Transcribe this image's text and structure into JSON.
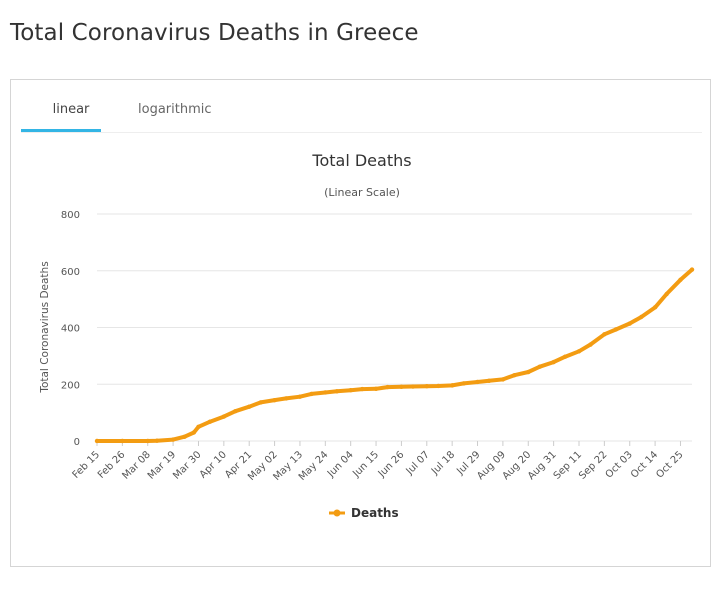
{
  "page": {
    "title": "Total Coronavirus Deaths in Greece"
  },
  "tabs": [
    {
      "label": "linear",
      "active": true
    },
    {
      "label": "logarithmic",
      "active": false
    }
  ],
  "colors": {
    "series": "#f39c12",
    "tab_active": "#33b5e5",
    "grid": "#e6e6e6"
  },
  "chart_data": {
    "type": "line",
    "title": "Total Deaths",
    "subtitle": "(Linear Scale)",
    "ylabel": "Total Coronavirus Deaths",
    "xlabel": "",
    "ylim": [
      0,
      800
    ],
    "yticks": [
      0,
      200,
      400,
      600,
      800
    ],
    "grid": true,
    "legend_position": "bottom-center",
    "x_tick_labels": [
      "Feb 15",
      "Feb 26",
      "Mar 08",
      "Mar 19",
      "Mar 30",
      "Apr 10",
      "Apr 21",
      "May 02",
      "May 13",
      "May 24",
      "Jun 04",
      "Jun 15",
      "Jun 26",
      "Jul 07",
      "Jul 18",
      "Jul 29",
      "Aug 09",
      "Aug 20",
      "Aug 31",
      "Sep 11",
      "Sep 22",
      "Oct 03",
      "Oct 14",
      "Oct 25"
    ],
    "x": [
      "Feb 15",
      "Feb 26",
      "Mar 08",
      "Mar 12",
      "Mar 19",
      "Mar 24",
      "Mar 28",
      "Mar 30",
      "Apr 04",
      "Apr 10",
      "Apr 15",
      "Apr 21",
      "Apr 26",
      "May 02",
      "May 07",
      "May 13",
      "May 18",
      "May 24",
      "May 29",
      "Jun 04",
      "Jun 09",
      "Jun 15",
      "Jun 20",
      "Jun 26",
      "Jul 01",
      "Jul 07",
      "Jul 12",
      "Jul 18",
      "Jul 23",
      "Jul 29",
      "Aug 03",
      "Aug 09",
      "Aug 14",
      "Aug 20",
      "Aug 25",
      "Aug 31",
      "Sep 05",
      "Sep 11",
      "Sep 16",
      "Sep 22",
      "Sep 27",
      "Oct 03",
      "Oct 08",
      "Oct 14",
      "Oct 19",
      "Oct 25",
      "Oct 30"
    ],
    "series": [
      {
        "name": "Deaths",
        "values": [
          0,
          0,
          0,
          1,
          5,
          15,
          30,
          50,
          68,
          86,
          105,
          121,
          136,
          144,
          150,
          156,
          166,
          171,
          175,
          179,
          183,
          184,
          190,
          191,
          192,
          193,
          194,
          196,
          203,
          208,
          212,
          217,
          232,
          243,
          262,
          278,
          297,
          316,
          340,
          376,
          393,
          414,
          437,
          471,
          518,
          568,
          604
        ]
      }
    ]
  }
}
